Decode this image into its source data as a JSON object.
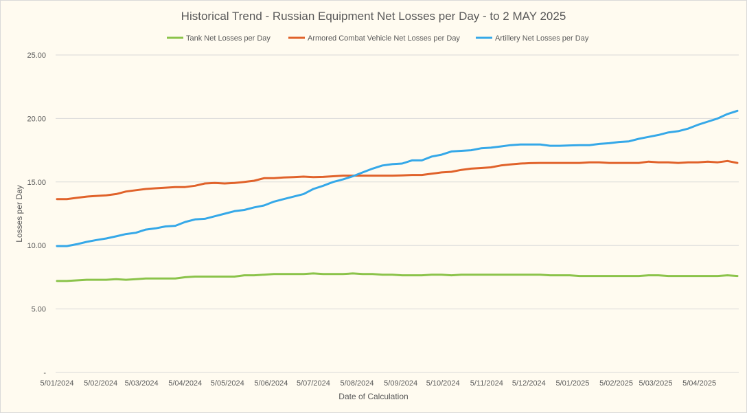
{
  "chart_data": {
    "type": "line",
    "title": "Historical Trend - Russian Equipment Net Losses per Day - to 2 MAY 2025",
    "xlabel": "Date of Calculation",
    "ylabel": "Losses per Day",
    "ylim": [
      0,
      25
    ],
    "yticks": [
      0,
      5,
      10,
      15,
      20,
      25
    ],
    "ytick_labels": [
      "-",
      "5.00",
      "10.00",
      "15.00",
      "20.00",
      "25.00"
    ],
    "grid": true,
    "legend_position": "top",
    "x_unit": "days since 5/01/2024, weekly samples",
    "x_step_days": 7,
    "xticks": [
      0,
      31,
      60,
      91,
      121,
      152,
      182,
      213,
      244,
      274,
      305,
      335,
      366,
      397,
      425,
      456
    ],
    "xtick_labels": [
      "5/01/2024",
      "5/02/2024",
      "5/03/2024",
      "5/04/2024",
      "5/05/2024",
      "5/06/2024",
      "5/07/2024",
      "5/08/2024",
      "5/09/2024",
      "5/10/2024",
      "5/11/2024",
      "5/12/2024",
      "5/01/2025",
      "5/02/2025",
      "5/03/2025",
      "5/04/2025"
    ],
    "series": [
      {
        "name": "Tank Net Losses per Day",
        "color": "#8bc34a",
        "values": [
          7.2,
          7.2,
          7.25,
          7.3,
          7.3,
          7.3,
          7.35,
          7.3,
          7.35,
          7.4,
          7.4,
          7.4,
          7.4,
          7.5,
          7.55,
          7.55,
          7.55,
          7.55,
          7.55,
          7.65,
          7.65,
          7.7,
          7.75,
          7.75,
          7.75,
          7.75,
          7.8,
          7.75,
          7.75,
          7.75,
          7.8,
          7.75,
          7.75,
          7.7,
          7.7,
          7.65,
          7.65,
          7.65,
          7.7,
          7.7,
          7.65,
          7.7,
          7.7,
          7.7,
          7.7,
          7.7,
          7.7,
          7.7,
          7.7,
          7.7,
          7.65,
          7.65,
          7.65,
          7.6,
          7.6,
          7.6,
          7.6,
          7.6,
          7.6,
          7.6,
          7.65,
          7.65,
          7.6,
          7.6,
          7.6,
          7.6,
          7.6,
          7.6,
          7.65,
          7.6
        ]
      },
      {
        "name": "Armored Combat Vehicle Net Losses per Day",
        "color": "#e0622a",
        "values": [
          13.65,
          13.65,
          13.75,
          13.85,
          13.9,
          13.95,
          14.05,
          14.25,
          14.35,
          14.45,
          14.5,
          14.55,
          14.6,
          14.6,
          14.7,
          14.88,
          14.92,
          14.88,
          14.92,
          15.0,
          15.1,
          15.3,
          15.3,
          15.35,
          15.38,
          15.42,
          15.38,
          15.4,
          15.45,
          15.5,
          15.5,
          15.5,
          15.5,
          15.5,
          15.5,
          15.52,
          15.55,
          15.55,
          15.65,
          15.75,
          15.8,
          15.95,
          16.05,
          16.1,
          16.15,
          16.3,
          16.38,
          16.45,
          16.48,
          16.5,
          16.5,
          16.5,
          16.5,
          16.5,
          16.55,
          16.55,
          16.5,
          16.5,
          16.5,
          16.5,
          16.6,
          16.55,
          16.55,
          16.5,
          16.55,
          16.55,
          16.6,
          16.55,
          16.65,
          16.5
        ]
      },
      {
        "name": "Artillery Net Losses per Day",
        "color": "#35a8e8",
        "values": [
          9.95,
          9.95,
          10.1,
          10.28,
          10.43,
          10.55,
          10.72,
          10.9,
          11.0,
          11.25,
          11.35,
          11.5,
          11.55,
          11.85,
          12.05,
          12.1,
          12.3,
          12.5,
          12.7,
          12.8,
          13.0,
          13.15,
          13.45,
          13.65,
          13.85,
          14.05,
          14.45,
          14.7,
          15.0,
          15.2,
          15.45,
          15.75,
          16.05,
          16.3,
          16.4,
          16.45,
          16.7,
          16.7,
          17.0,
          17.15,
          17.4,
          17.45,
          17.5,
          17.65,
          17.7,
          17.8,
          17.9,
          17.95,
          17.95,
          17.95,
          17.85,
          17.85,
          17.88,
          17.9,
          17.9,
          18.0,
          18.05,
          18.15,
          18.2,
          18.4,
          18.55,
          18.7,
          18.9,
          19.0,
          19.2,
          19.5,
          19.75,
          20.0,
          20.35,
          20.6
        ]
      }
    ]
  }
}
